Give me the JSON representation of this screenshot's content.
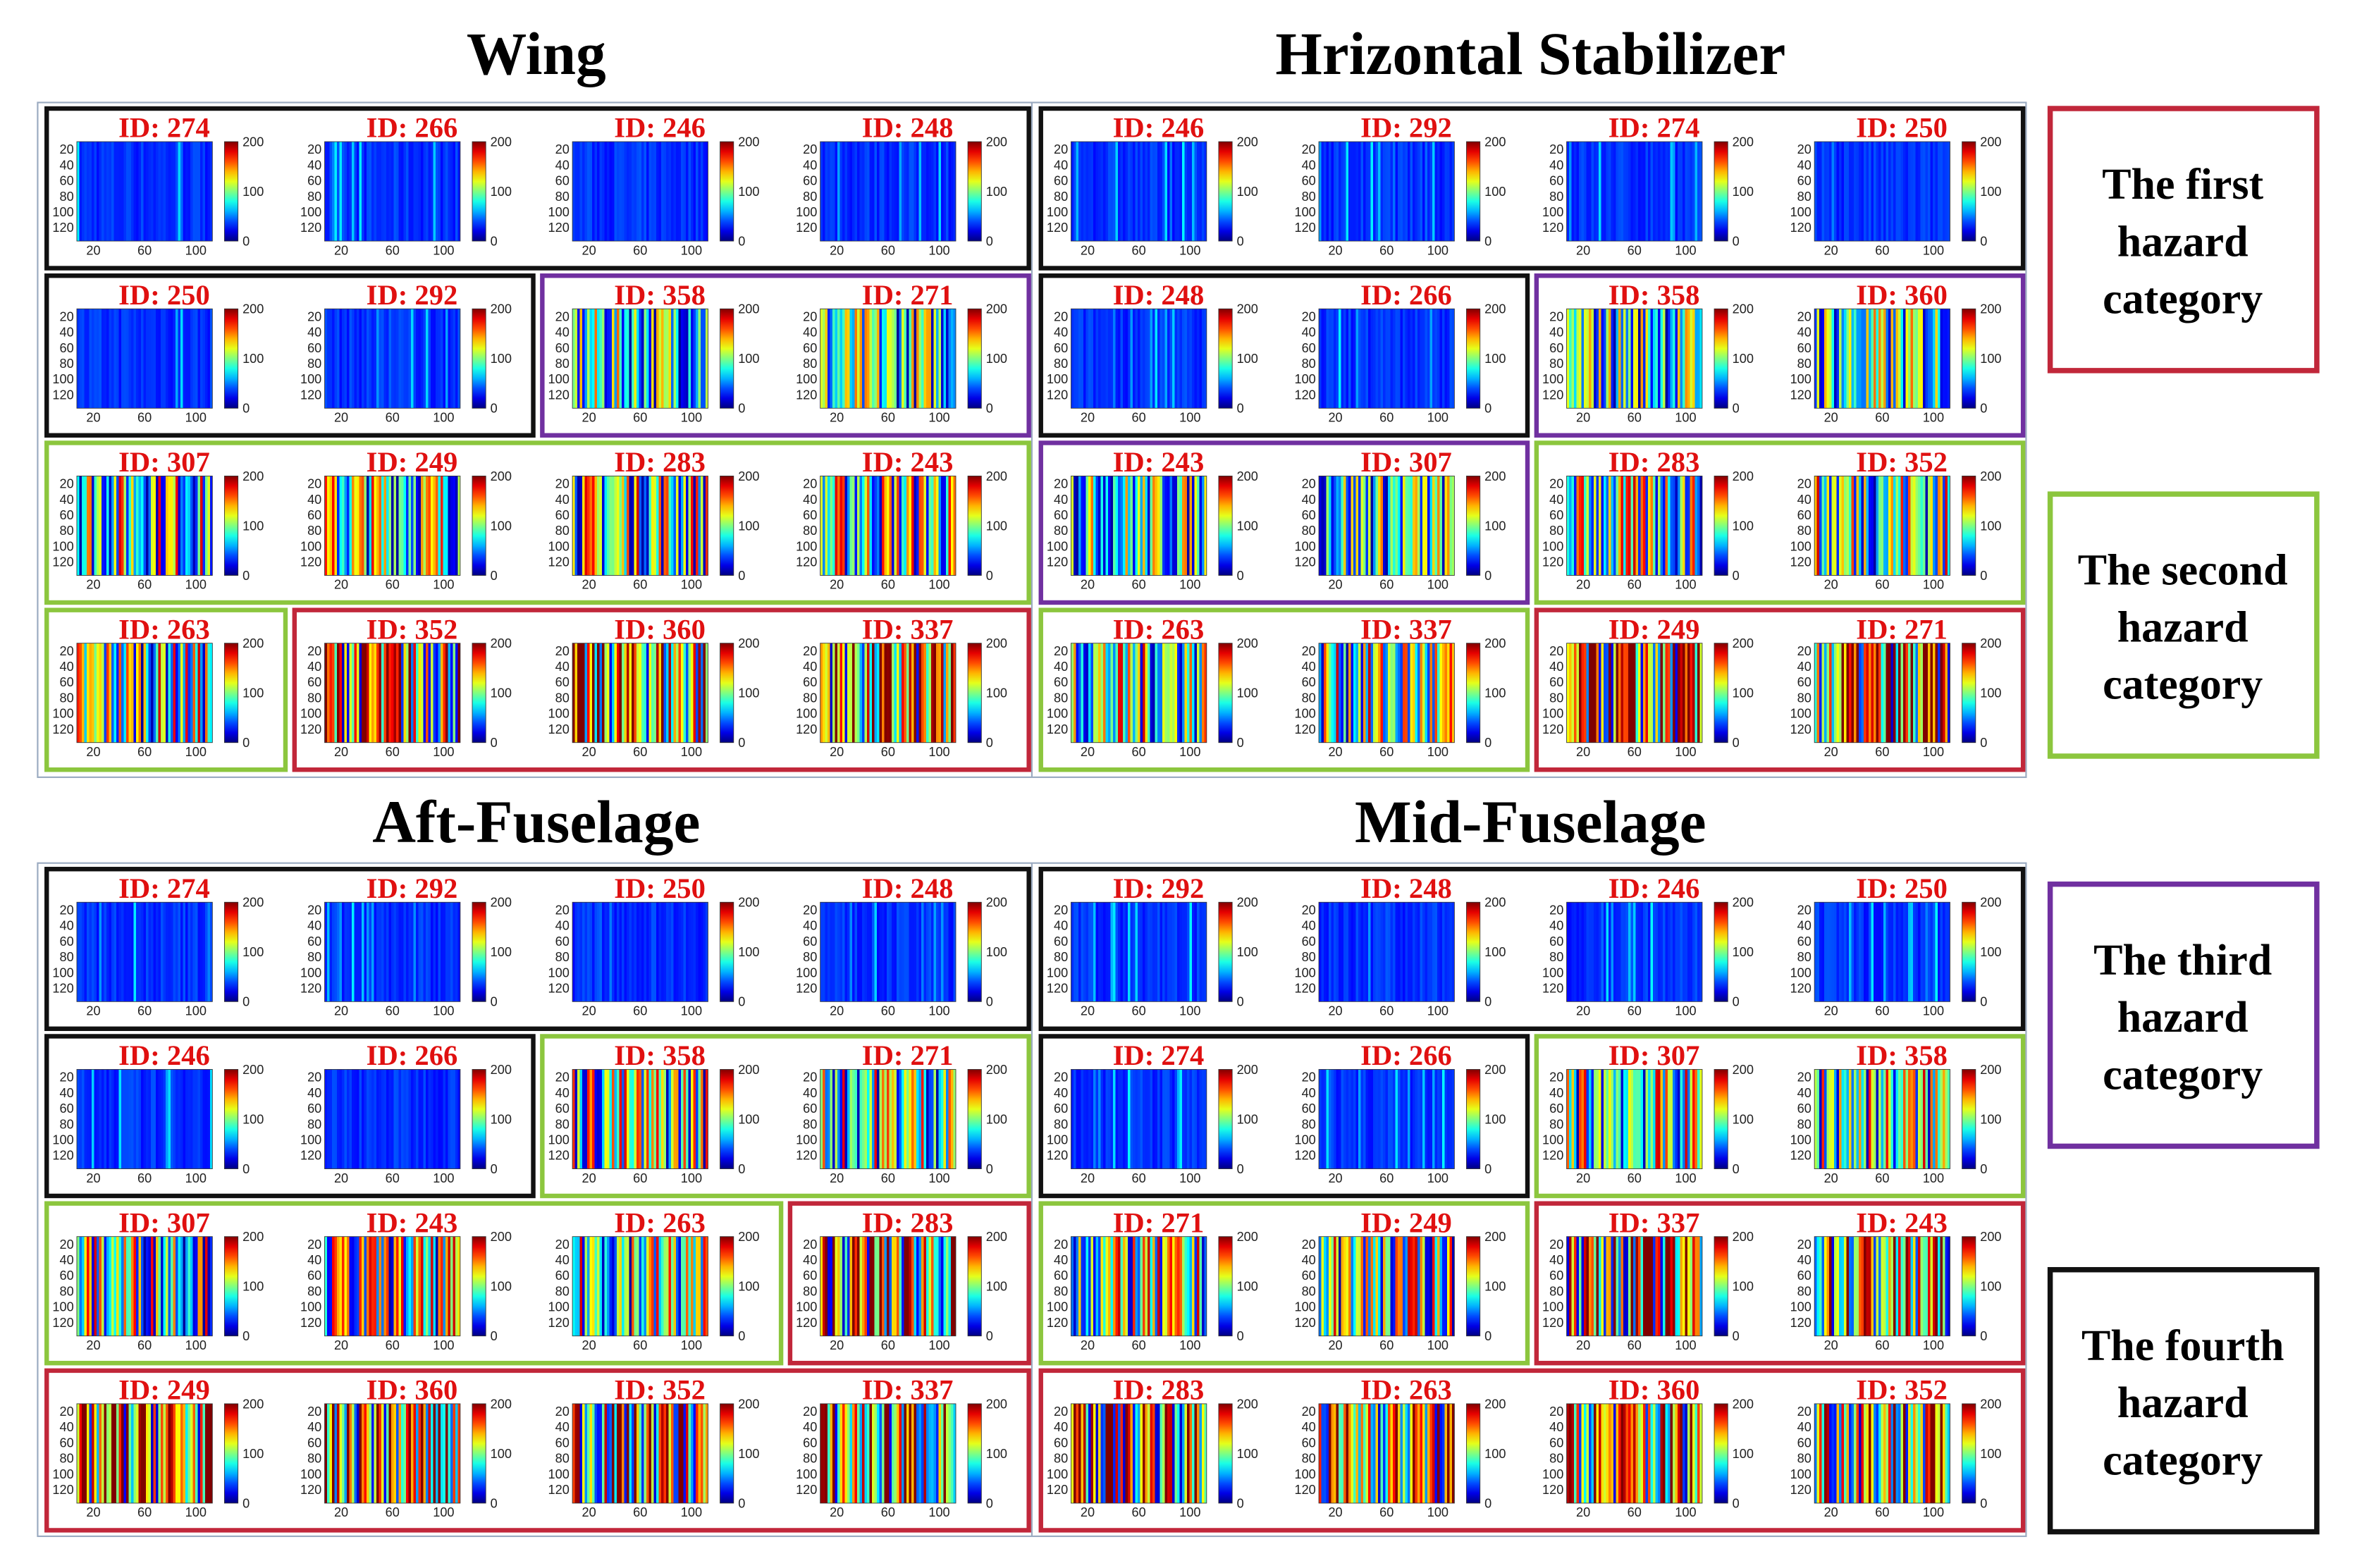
{
  "panels": [
    {
      "title": "Wing",
      "rows": [
        [
          {
            "category": 3,
            "ids": [
              "ID: 274",
              "ID: 266",
              "ID: 246",
              "ID: 248"
            ]
          }
        ],
        [
          {
            "category": 3,
            "ids": [
              "ID: 250",
              "ID: 292"
            ]
          },
          {
            "category": 2,
            "ids": [
              "ID: 358",
              "ID: 271"
            ]
          }
        ],
        [
          {
            "category": 1,
            "ids": [
              "ID: 307",
              "ID: 249",
              "ID: 283",
              "ID: 243"
            ]
          }
        ],
        [
          {
            "category": 1,
            "ids": [
              "ID: 263"
            ]
          },
          {
            "category": 0,
            "ids": [
              "ID: 352",
              "ID: 360",
              "ID: 337"
            ]
          }
        ]
      ]
    },
    {
      "title": "Hrizontal Stabilizer",
      "rows": [
        [
          {
            "category": 3,
            "ids": [
              "ID: 246",
              "ID: 292",
              "ID: 274",
              "ID: 250"
            ]
          }
        ],
        [
          {
            "category": 3,
            "ids": [
              "ID: 248",
              "ID: 266"
            ]
          },
          {
            "category": 2,
            "ids": [
              "ID: 358",
              "ID: 360"
            ]
          }
        ],
        [
          {
            "category": 2,
            "ids": [
              "ID: 243",
              "ID: 307"
            ]
          },
          {
            "category": 1,
            "ids": [
              "ID: 283",
              "ID: 352"
            ]
          }
        ],
        [
          {
            "category": 1,
            "ids": [
              "ID: 263",
              "ID: 337"
            ]
          },
          {
            "category": 0,
            "ids": [
              "ID: 249",
              "ID: 271"
            ]
          }
        ]
      ]
    },
    {
      "title": "Aft-Fuselage",
      "rows": [
        [
          {
            "category": 3,
            "ids": [
              "ID: 274",
              "ID: 292",
              "ID: 250",
              "ID: 248"
            ]
          }
        ],
        [
          {
            "category": 3,
            "ids": [
              "ID: 246",
              "ID: 266"
            ]
          },
          {
            "category": 1,
            "ids": [
              "ID: 358",
              "ID: 271"
            ]
          }
        ],
        [
          {
            "category": 1,
            "ids": [
              "ID: 307",
              "ID: 243",
              "ID: 263"
            ]
          },
          {
            "category": 0,
            "ids": [
              "ID: 283"
            ]
          }
        ],
        [
          {
            "category": 0,
            "ids": [
              "ID: 249",
              "ID: 360",
              "ID: 352",
              "ID: 337"
            ]
          }
        ]
      ]
    },
    {
      "title": "Mid-Fuselage",
      "rows": [
        [
          {
            "category": 3,
            "ids": [
              "ID: 292",
              "ID: 248",
              "ID: 246",
              "ID: 250"
            ]
          }
        ],
        [
          {
            "category": 3,
            "ids": [
              "ID: 274",
              "ID: 266"
            ]
          },
          {
            "category": 1,
            "ids": [
              "ID: 307",
              "ID: 358"
            ]
          }
        ],
        [
          {
            "category": 1,
            "ids": [
              "ID: 271",
              "ID: 249"
            ]
          },
          {
            "category": 0,
            "ids": [
              "ID: 337",
              "ID: 243"
            ]
          }
        ],
        [
          {
            "category": 0,
            "ids": [
              "ID: 283",
              "ID: 263",
              "ID: 360",
              "ID: 352"
            ]
          }
        ]
      ]
    }
  ],
  "axis": {
    "y_ticks": [
      "20",
      "40",
      "60",
      "80",
      "100",
      "120"
    ],
    "x_ticks": [
      "20",
      "60",
      "100"
    ],
    "colorbar_ticks": [
      "200",
      "100",
      "0"
    ]
  },
  "legend": [
    {
      "lines": [
        "The first",
        "hazard",
        "category"
      ],
      "color": "#c1273a"
    },
    {
      "lines": [
        "The second",
        "hazard",
        "category"
      ],
      "color": "#8cc63e"
    },
    {
      "lines": [
        "The third",
        "hazard",
        "category"
      ],
      "color": "#7030a0"
    },
    {
      "lines": [
        "The fourth",
        "hazard",
        "category"
      ],
      "color": "#111111"
    }
  ]
}
